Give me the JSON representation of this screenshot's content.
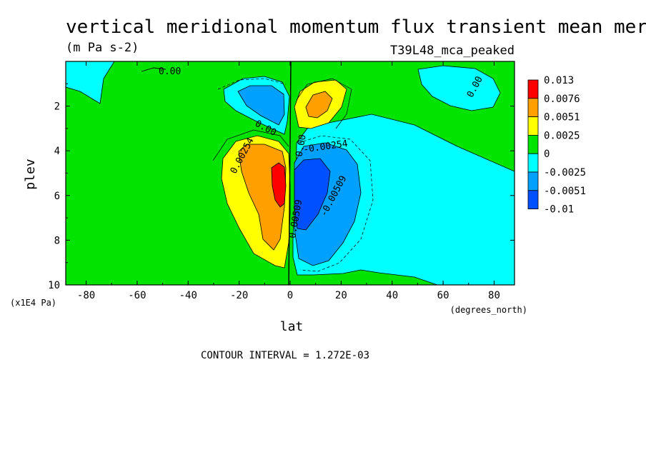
{
  "chart_data": {
    "type": "heatmap",
    "title": "vertical meridional momentum flux transient mean merdional",
    "units": "(m Pa s-2)",
    "dataset": "T39L48_mca_peaked",
    "xlabel": "lat",
    "ylabel": "plev",
    "x_units": "(degrees_north)",
    "y_units": "(x1E4 Pa)",
    "xlim": [
      -88,
      88
    ],
    "ylim": [
      10,
      0
    ],
    "x_ticks": [
      -80,
      -60,
      -40,
      -20,
      0,
      20,
      40,
      60,
      80
    ],
    "x_tick_labels": [
      "-80",
      "-60",
      "-40",
      "-20",
      "0",
      "20",
      "40",
      "60",
      "80"
    ],
    "y_ticks": [
      2,
      4,
      6,
      8,
      10
    ],
    "y_tick_labels": [
      "2",
      "4",
      "6",
      "8",
      "10"
    ],
    "contour_interval_label": "CONTOUR INTERVAL = 1.272E-03",
    "colorbar": {
      "levels": [
        "0.013",
        "0.0076",
        "0.0051",
        "0.0025",
        "0",
        "-0.0025",
        "-0.0051",
        "-0.01"
      ],
      "colors": [
        "#ff0000",
        "#ffa000",
        "#ffff00",
        "#00e400",
        "#00ffff",
        "#00a0ff",
        "#0050ff"
      ]
    },
    "contour_labels": [
      "0.00",
      "0.00",
      "0.00",
      "0.00254",
      "0.00",
      "-0.00254",
      "-0.00509",
      "0.00509"
    ],
    "features": [
      {
        "region": "positive maximum",
        "lat": -5,
        "plev": 5.8,
        "value": 0.013
      },
      {
        "region": "negative minimum",
        "lat": 5,
        "plev": 5.5,
        "value": -0.01
      },
      {
        "region": "upper positive lobe",
        "lat": 8,
        "plev": 2.2,
        "value": 0.0076
      },
      {
        "region": "upper negative lobe",
        "lat": -5,
        "plev": 1.8,
        "value": -0.0051
      }
    ]
  }
}
